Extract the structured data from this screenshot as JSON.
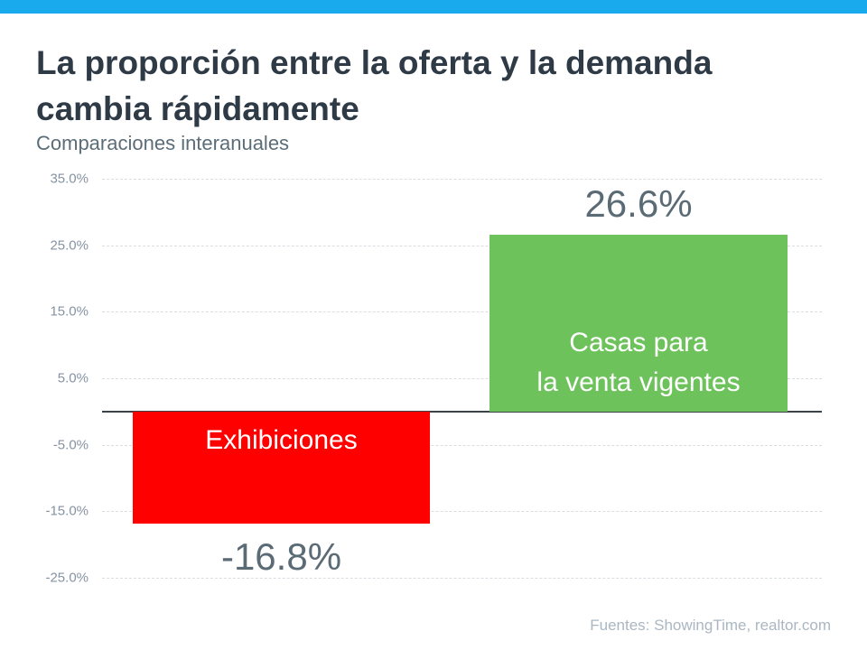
{
  "accent": {
    "top_bar_color": "#18aaec"
  },
  "header": {
    "title_line1": "La proporción entre la oferta y la demanda",
    "title_line2": "cambia rápidamente",
    "subtitle": "Comparaciones interanuales"
  },
  "footer": {
    "sources": "Fuentes: ShowingTime, realtor.com"
  },
  "chart_data": {
    "type": "bar",
    "title": "La proporción entre la oferta y la demanda cambia rápidamente",
    "subtitle": "Comparaciones interanuales",
    "categories": [
      "Exhibiciones",
      "Casas para la venta vigentes"
    ],
    "values": [
      -16.8,
      26.6
    ],
    "value_labels": [
      "-16.8%",
      "26.6%"
    ],
    "bar_label_lines": [
      [
        "Exhibiciones"
      ],
      [
        "Casas para",
        "la venta vigentes"
      ]
    ],
    "bar_colors": [
      "#ff0000",
      "#6ec25c"
    ],
    "bar_label_text_color": "#ffffff",
    "value_label_color": "#5a6b75",
    "xlabel": "",
    "ylabel": "",
    "ylim": [
      -25,
      35
    ],
    "yticks": [
      35,
      25,
      15,
      5,
      -5,
      -15,
      -25
    ],
    "ytick_labels": [
      "35.0%",
      "25.0%",
      "15.0%",
      "5.0%",
      "-5.0%",
      "-15.0%",
      "-25.0%"
    ],
    "grid": true,
    "legend": "none",
    "sources": "Fuentes: ShowingTime, realtor.com"
  }
}
